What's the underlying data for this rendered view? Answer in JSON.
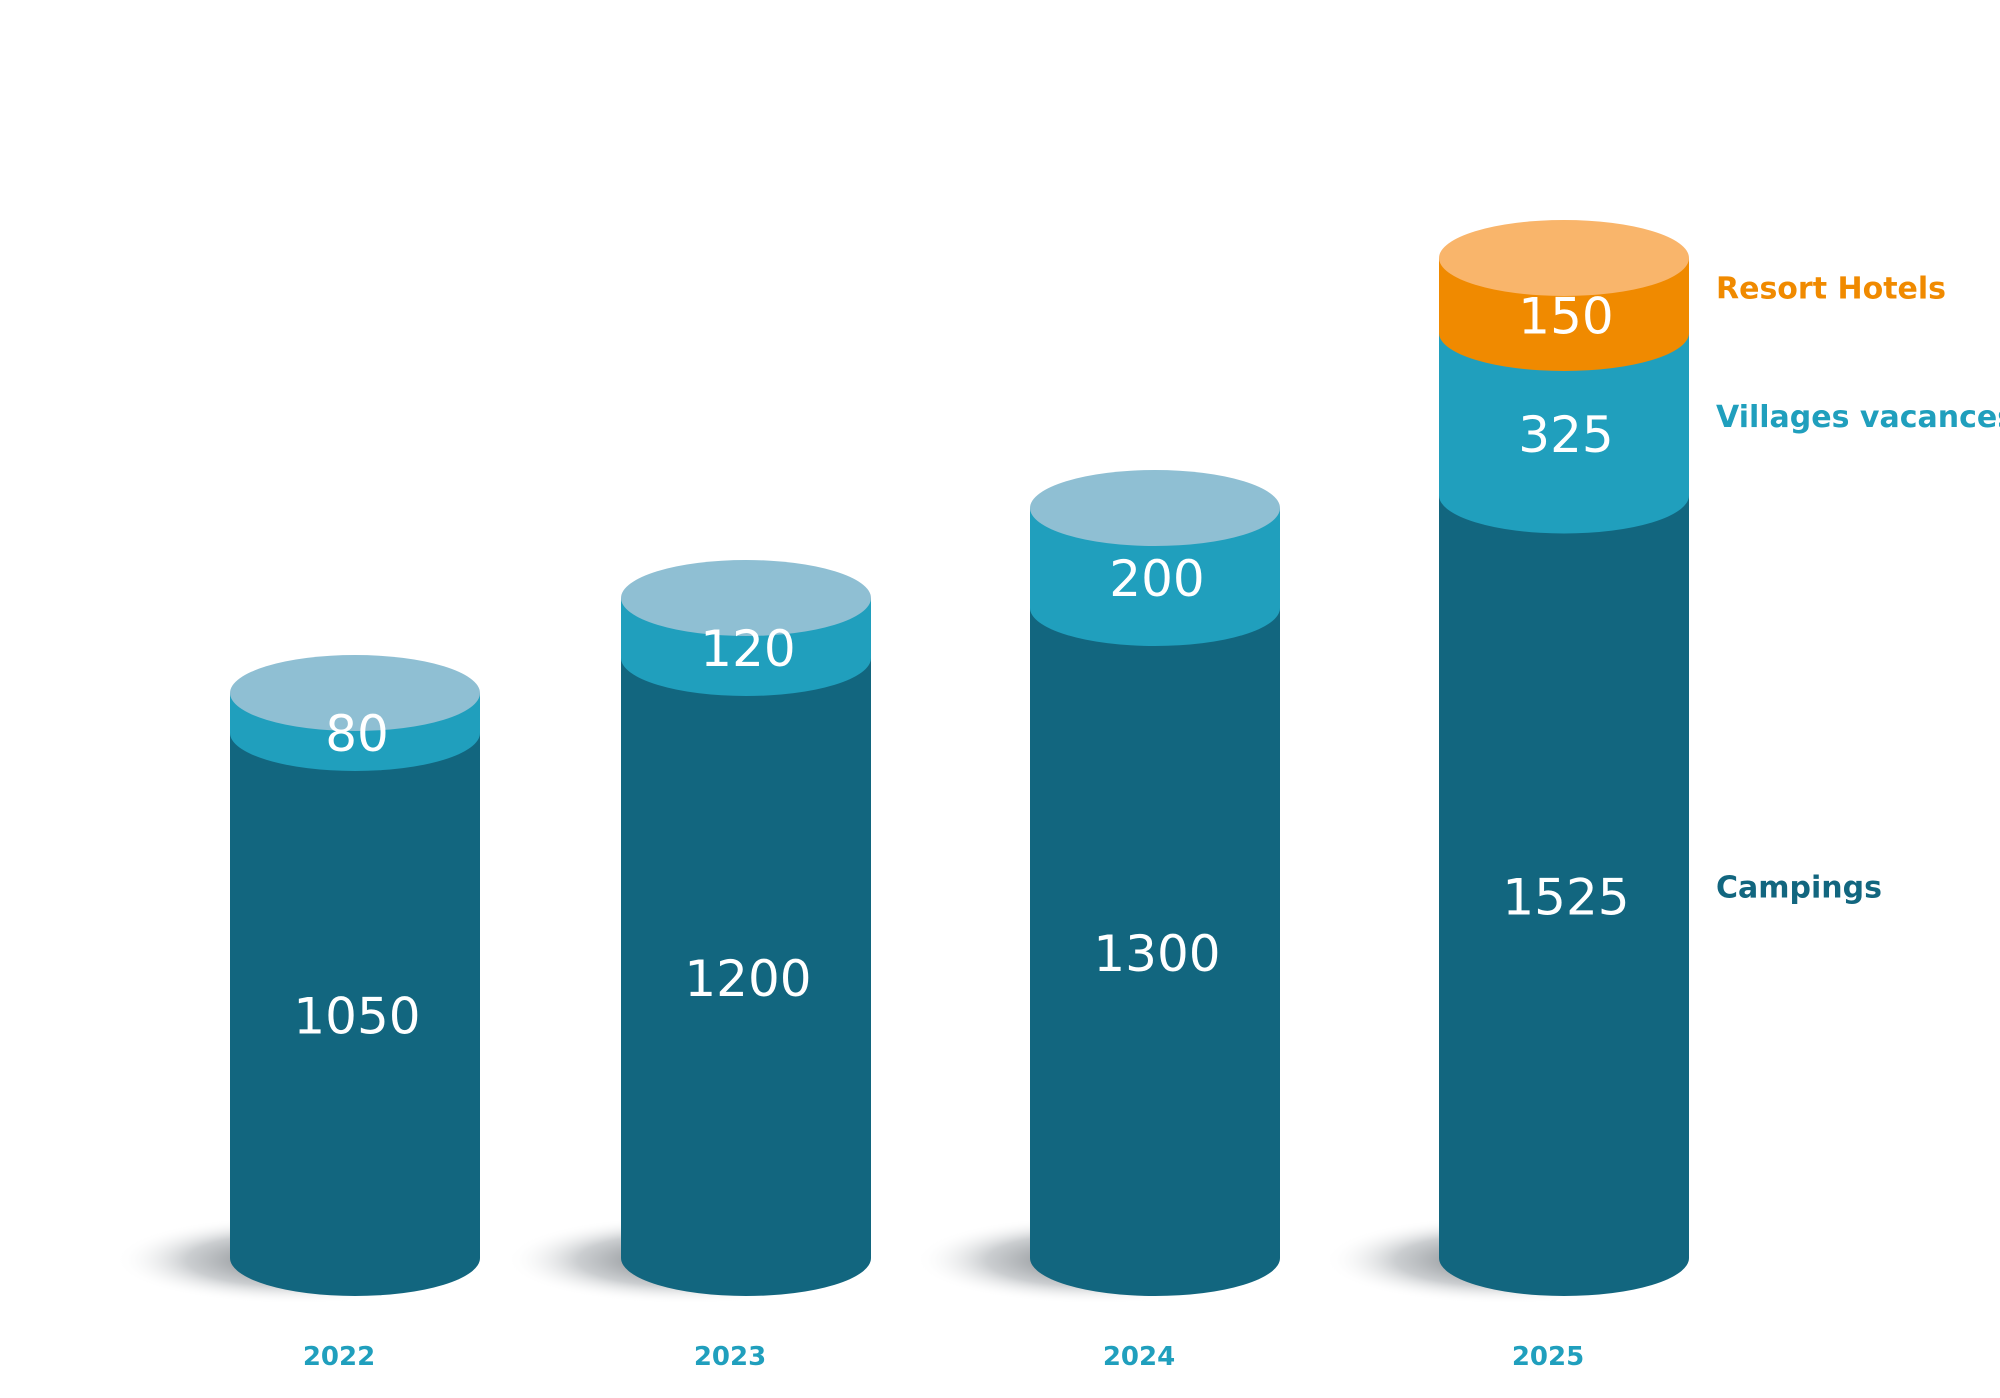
{
  "chart_data": {
    "type": "bar",
    "categories": [
      "2022",
      "2023",
      "2024",
      "2025"
    ],
    "series": [
      {
        "name": "Campings",
        "values": [
          1050,
          1200,
          1300,
          1525
        ]
      },
      {
        "name": "Villages vacances",
        "values": [
          80,
          120,
          200,
          325
        ]
      },
      {
        "name": "Resort Hotels",
        "values": [
          null,
          null,
          null,
          150
        ]
      }
    ],
    "stacked": true,
    "legend_placement": "right",
    "colors": {
      "Campings": "#12667f",
      "Villages vacances": "#209fbd",
      "Resort Hotels": "#f08a00",
      "top_cap_blue": "#8fbfd3",
      "top_cap_orange": "#f9b56b",
      "year_text": "#209fbd",
      "value_text": "#ffffff"
    }
  }
}
